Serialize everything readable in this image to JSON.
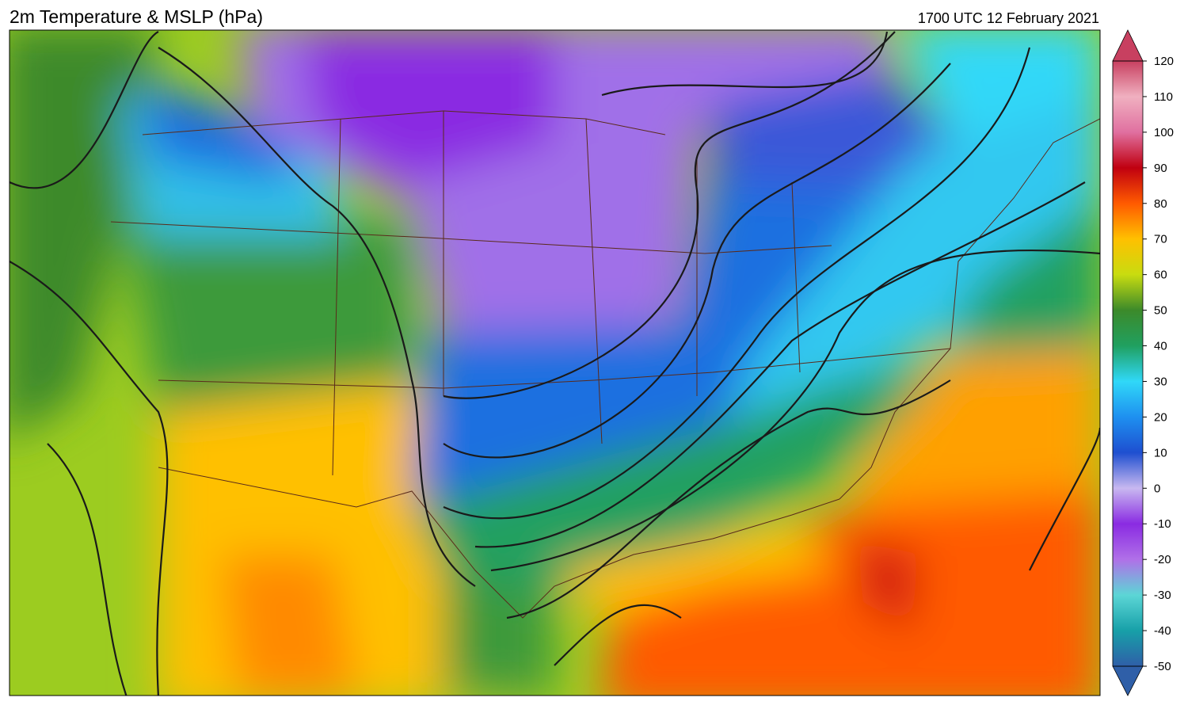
{
  "header": {
    "title": "2m Temperature & MSLP (hPa)",
    "valid_time": "1700 UTC 12 February 2021"
  },
  "colorbar": {
    "lim": [
      -50,
      120
    ],
    "ticks": [
      -50,
      -40,
      -30,
      -20,
      -10,
      0,
      10,
      20,
      30,
      40,
      50,
      60,
      70,
      80,
      90,
      100,
      110,
      120
    ],
    "colors": [
      "#2f5fa8",
      "#17a0a8",
      "#5cd6d6",
      "#b070e8",
      "#8a2be2",
      "#c8b8f0",
      "#1e4fd0",
      "#1e90f0",
      "#30d8f8",
      "#20a060",
      "#3c8a2a",
      "#c8dc10",
      "#ffc000",
      "#ff5a00",
      "#c00010",
      "#e070a0",
      "#f0b0c0",
      "#c84060"
    ]
  }
}
